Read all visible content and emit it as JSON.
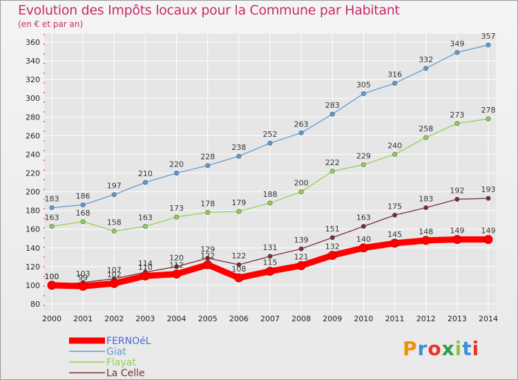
{
  "header": {
    "title": "Evolution des Impôts locaux pour la Commune par Habitant",
    "subtitle": "(en € et par an)"
  },
  "logo": {
    "text": "Proxiti",
    "colors": [
      "#f39200",
      "#3a8fd6",
      "#e8342b",
      "#2e9c49",
      "#8dc63f",
      "#3a8fd6",
      "#e8342b"
    ]
  },
  "colors": {
    "title": "#c82a6a",
    "grid": "#ffffff",
    "axis_red": "#e2001a"
  },
  "chart_data": {
    "type": "line",
    "title": "Evolution des Impôts locaux pour la Commune par Habitant",
    "ylabel": "(en € et par an)",
    "xlabel": "",
    "x": [
      "2000",
      "2001",
      "2002",
      "2003",
      "2004",
      "2005",
      "2006",
      "2007",
      "2008",
      "2009",
      "2010",
      "2011",
      "2012",
      "2013",
      "2014"
    ],
    "ylim": [
      80,
      360
    ],
    "yticks": [
      80,
      100,
      120,
      140,
      160,
      180,
      200,
      220,
      240,
      260,
      280,
      300,
      320,
      340,
      360
    ],
    "grid": true,
    "legend": "bottom-left",
    "series": [
      {
        "name": "FERNOéL",
        "color": "#ff0000",
        "values": [
          100,
          99,
          102,
          110,
          112,
          122,
          108,
          115,
          121,
          132,
          140,
          145,
          148,
          149,
          149
        ],
        "labels": [
          "100",
          "99",
          "102",
          "110",
          "112",
          "122",
          "108",
          "115",
          "121",
          "132",
          "140",
          "145",
          "148",
          "149",
          "149"
        ]
      },
      {
        "name": "Giat",
        "color": "#5b9bd5",
        "values": [
          183,
          186,
          197,
          210,
          220,
          228,
          238,
          252,
          263,
          283,
          305,
          316,
          332,
          349,
          357
        ],
        "labels": [
          "183",
          "186",
          "197",
          "210",
          "220",
          "228",
          "238",
          "252",
          "263",
          "283",
          "305",
          "316",
          "332",
          "349",
          "357"
        ]
      },
      {
        "name": "Flayat",
        "color": "#92d050",
        "values": [
          163,
          168,
          158,
          163,
          173,
          178,
          179,
          188,
          200,
          222,
          229,
          240,
          258,
          273,
          278
        ],
        "labels": [
          "163",
          "168",
          "158",
          "163",
          "173",
          "178",
          "179",
          "188",
          "200",
          "222",
          "229",
          "240",
          "258",
          "273",
          "278"
        ]
      },
      {
        "name": "La Celle",
        "color": "#7b2c33",
        "values": [
          100,
          103,
          107,
          114,
          120,
          129,
          122,
          131,
          139,
          151,
          163,
          175,
          183,
          192,
          193
        ],
        "labels": [
          "100",
          "103",
          "107",
          "114",
          "120",
          "129",
          "122",
          "131",
          "139",
          "151",
          "163",
          "175",
          "183",
          "192",
          "193"
        ]
      }
    ]
  }
}
